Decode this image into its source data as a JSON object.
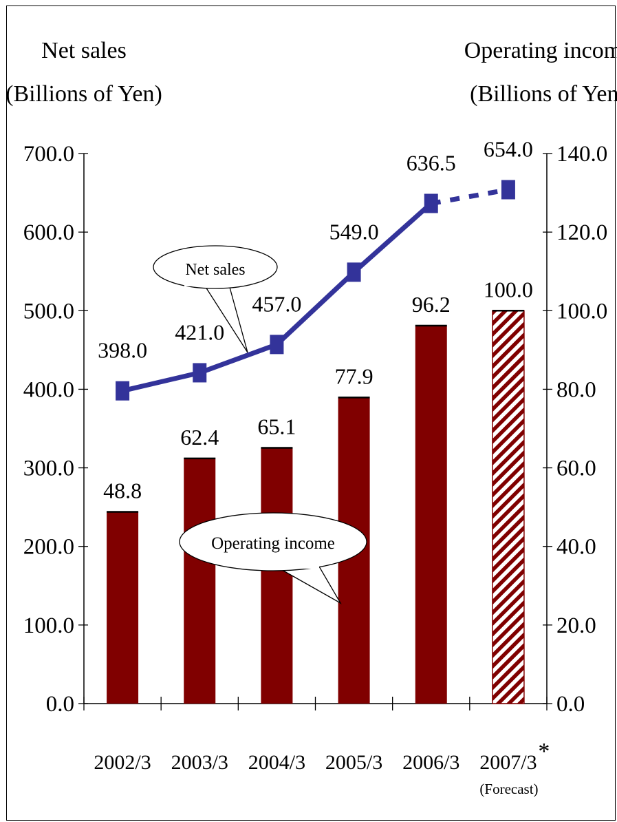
{
  "chart_data": {
    "type": "bar",
    "left_axis": {
      "title_line1": "Net sales",
      "title_line2": "(Billions of Yen)",
      "range": [
        0,
        700
      ],
      "ticks": [
        "0.0",
        "100.0",
        "200.0",
        "300.0",
        "400.0",
        "500.0",
        "600.0",
        "700.0"
      ]
    },
    "right_axis": {
      "title_line1": "Operating income",
      "title_line2": "(Billions of Yen)",
      "range": [
        0,
        140
      ],
      "ticks": [
        "0.0",
        "20.0",
        "40.0",
        "60.0",
        "80.0",
        "100.0",
        "120.0",
        "140.0"
      ]
    },
    "categories": [
      "2002/3",
      "2003/3",
      "2004/3",
      "2005/3",
      "2006/3",
      "2007/3"
    ],
    "forecast_marker": "*",
    "forecast_label": "(Forecast)",
    "series": [
      {
        "name": "Operating income",
        "type": "bar",
        "axis": "right",
        "values": [
          48.8,
          62.4,
          65.1,
          77.9,
          96.2,
          100.0
        ],
        "labels": [
          "48.8",
          "62.4",
          "65.1",
          "77.9",
          "96.2",
          "100.0"
        ],
        "forecast_index": 5
      },
      {
        "name": "Net sales",
        "type": "line",
        "axis": "left",
        "values": [
          398.0,
          421.0,
          457.0,
          549.0,
          636.5,
          654.0
        ],
        "labels": [
          "398.0",
          "421.0",
          "457.0",
          "549.0",
          "636.5",
          "654.0"
        ],
        "forecast_index": 5
      }
    ],
    "callouts": {
      "net_sales": "Net sales",
      "operating_income": "Operating income"
    },
    "colors": {
      "bar": "#800000",
      "line": "#33339a",
      "hatch_light": "#ffffff"
    },
    "grid": false
  }
}
